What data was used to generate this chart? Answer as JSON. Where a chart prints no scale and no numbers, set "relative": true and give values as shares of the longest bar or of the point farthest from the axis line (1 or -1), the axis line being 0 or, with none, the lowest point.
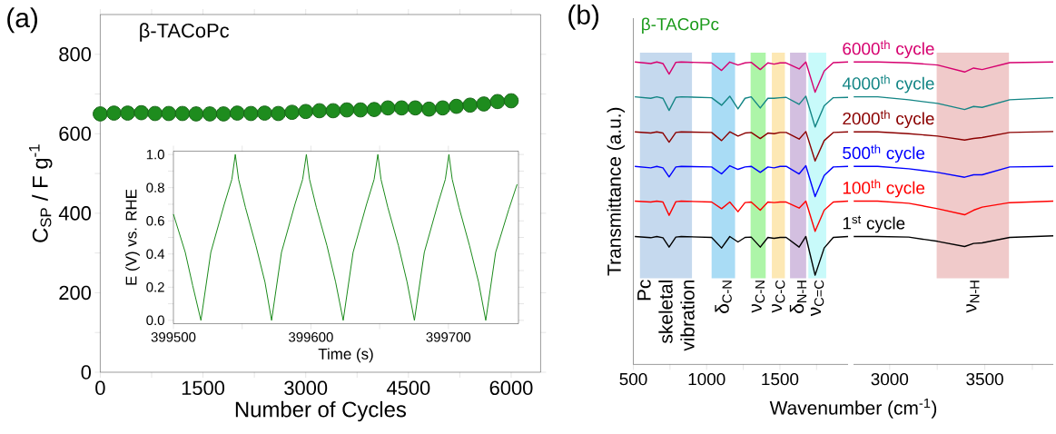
{
  "chart_data": [
    {
      "type": "scatter",
      "title": "β-TACoPc",
      "xlabel": "Number of Cycles",
      "ylabel": "C$_{SP}$ / F g$^{-1}$",
      "annotations": [
        "(a)"
      ],
      "marker": "circle",
      "color": "#1e8c1e",
      "x": [
        0,
        200,
        400,
        600,
        800,
        1000,
        1200,
        1400,
        1600,
        1800,
        2000,
        2200,
        2400,
        2600,
        2800,
        3000,
        3200,
        3400,
        3600,
        3800,
        4000,
        4200,
        4400,
        4600,
        4800,
        5000,
        5200,
        5400,
        5600,
        5800,
        6000
      ],
      "values": [
        650,
        652,
        652,
        653,
        651,
        651,
        651,
        650,
        650,
        650,
        652,
        651,
        652,
        651,
        654,
        656,
        658,
        658,
        660,
        660,
        661,
        665,
        665,
        665,
        662,
        665,
        669,
        672,
        675,
        681,
        683
      ],
      "xlim": [
        0,
        6430
      ],
      "ylim": [
        0,
        900
      ],
      "xticks": [
        0,
        {
          "value": 750,
          "label": null
        },
        1500,
        {
          "value": 2250,
          "label": null
        },
        3000,
        {
          "value": 3750,
          "label": null
        },
        4500,
        {
          "value": 5250,
          "label": null
        },
        6000
      ],
      "yticks": [
        0,
        {
          "value": 100,
          "label": null
        },
        200,
        {
          "value": 300,
          "label": null
        },
        400,
        {
          "value": 500,
          "label": null
        },
        600,
        {
          "value": 700,
          "label": null
        },
        800
      ]
    },
    {
      "type": "line",
      "xlabel": "Time (s)",
      "ylabel": "E (V) vs. RHE",
      "color": "#1a8a1a",
      "marker": "none",
      "line_style": "solid",
      "x": [
        399500,
        399508.6,
        399514,
        399520,
        399527.2,
        399537,
        399542.5,
        399545,
        399547.4,
        399552.4,
        399560,
        399566.6,
        399571.4,
        399578.6,
        399588.4,
        399594,
        399596.7,
        399599,
        399604,
        399611.7,
        399618,
        399623.5,
        399630.7,
        399640.5,
        399646,
        399648.7,
        399651,
        399656,
        399663.7,
        399670,
        399675.3,
        399682.5,
        399692.3,
        399697.8,
        399700.4,
        399702.8,
        399707.8,
        399715.4,
        399722,
        399727.2,
        399734.4,
        399744,
        399750
      ],
      "values": [
        0.64,
        0.41,
        0.21,
        0,
        0.41,
        0.7,
        0.85,
        1.0,
        0.85,
        0.68,
        0.45,
        0.23,
        0,
        0.41,
        0.7,
        0.85,
        1.0,
        0.85,
        0.68,
        0.45,
        0.23,
        0,
        0.41,
        0.7,
        0.85,
        1.0,
        0.85,
        0.68,
        0.45,
        0.23,
        0,
        0.41,
        0.7,
        0.85,
        1.0,
        0.85,
        0.68,
        0.45,
        0.23,
        0,
        0.41,
        0.67,
        0.82
      ],
      "xlim": [
        399500,
        399751
      ],
      "ylim": [
        -0.02,
        1.02
      ],
      "xticks": [
        399500,
        {
          "value": 399550,
          "label": null
        },
        399600,
        {
          "value": 399650,
          "label": null
        },
        399700
      ],
      "yticks": [
        {
          "value": 0,
          "label": "0.0"
        },
        {
          "value": 0.1,
          "label": null
        },
        {
          "value": 0.2,
          "label": "0.2"
        },
        {
          "value": 0.3,
          "label": null
        },
        {
          "value": 0.4,
          "label": "0.4"
        },
        {
          "value": 0.5,
          "label": null
        },
        {
          "value": 0.6,
          "label": "0.6"
        },
        {
          "value": 0.7,
          "label": null
        },
        {
          "value": 0.8,
          "label": "0.8"
        },
        {
          "value": 0.9,
          "label": null
        },
        {
          "value": 1.0,
          "label": "1.0"
        }
      ]
    },
    {
      "type": "line",
      "title": "β-TACoPc",
      "ylabel": "Transmittance (a.u.)",
      "annotations": [
        "(b)"
      ],
      "relative": true,
      "marker": "none",
      "x": [
        510,
        619,
        660,
        702,
        744,
        790,
        827,
        1034,
        1102,
        1158,
        1214,
        1262,
        1304,
        1366,
        1418,
        1460,
        1501,
        1543,
        1631,
        1677,
        1740,
        1802,
        1864,
        1965
      ],
      "series": [
        {
          "color": "#000000",
          "values": [
            0.423,
            0.419,
            0.423,
            0.419,
            0.388,
            0.421,
            0.423,
            0.42,
            0.385,
            0.423,
            0.405,
            0.42,
            0.421,
            0.388,
            0.42,
            0.417,
            0.42,
            0.42,
            0.388,
            0.423,
            0.295,
            0.385,
            0.42,
            0.423
          ]
        },
        {
          "color": "#ff0000",
          "values": [
            0.54,
            0.537,
            0.54,
            0.537,
            0.493,
            0.538,
            0.54,
            0.537,
            0.515,
            0.537,
            0.505,
            0.535,
            0.537,
            0.51,
            0.537,
            0.535,
            0.537,
            0.537,
            0.517,
            0.54,
            0.44,
            0.51,
            0.537,
            0.54
          ]
        },
        {
          "color": "#0000ff",
          "values": [
            0.655,
            0.65,
            0.655,
            0.65,
            0.62,
            0.653,
            0.655,
            0.653,
            0.63,
            0.657,
            0.645,
            0.653,
            0.655,
            0.635,
            0.653,
            0.65,
            0.655,
            0.655,
            0.63,
            0.657,
            0.555,
            0.625,
            0.653,
            0.655
          ]
        },
        {
          "color": "#8b0000",
          "values": [
            0.769,
            0.765,
            0.769,
            0.765,
            0.735,
            0.767,
            0.769,
            0.767,
            0.74,
            0.769,
            0.755,
            0.765,
            0.767,
            0.747,
            0.765,
            0.763,
            0.767,
            0.767,
            0.745,
            0.77,
            0.673,
            0.74,
            0.767,
            0.769
          ]
        },
        {
          "color": "#138585",
          "values": [
            0.885,
            0.88,
            0.885,
            0.88,
            0.84,
            0.883,
            0.885,
            0.882,
            0.857,
            0.887,
            0.845,
            0.88,
            0.885,
            0.848,
            0.88,
            0.88,
            0.882,
            0.883,
            0.86,
            0.887,
            0.785,
            0.855,
            0.882,
            0.883
          ]
        },
        {
          "color": "#d6006f",
          "values": [
            1.0,
            0.995,
            1.0,
            0.995,
            0.96,
            0.999,
            1.0,
            0.997,
            0.972,
            1.0,
            0.99,
            0.997,
            0.999,
            0.975,
            0.997,
            0.993,
            0.997,
            0.997,
            0.977,
            1.0,
            0.9,
            0.97,
            0.998,
            1.0
          ]
        }
      ],
      "bands": [
        {
          "axis": "x",
          "from": 545,
          "to": 900,
          "label": "Pc skeletal vibration",
          "color": "#c5d9ee"
        },
        {
          "axis": "x",
          "from": 1034,
          "to": 1194,
          "label": "δ$_{C-N}$",
          "color": "#a9dcf5"
        },
        {
          "axis": "x",
          "from": 1300,
          "to": 1403,
          "label": "ν$_{C-N}$",
          "color": "#adf5a8"
        },
        {
          "axis": "x",
          "from": 1445,
          "to": 1534,
          "label": "ν$_{C-C}$",
          "color": "#fde8b4"
        },
        {
          "axis": "x",
          "from": 1569,
          "to": 1679,
          "label": "δ$_{N-H}$",
          "color": "#d3bfe0"
        },
        {
          "axis": "x",
          "from": 1694,
          "to": 1816,
          "label": "ν$_{C=C}$",
          "color": "#c8fafa"
        }
      ],
      "xlim": [
        500,
        1965
      ],
      "xticks": [
        500,
        {
          "value": 750,
          "label": null
        },
        1000,
        {
          "value": 1250,
          "label": null
        },
        1500,
        {
          "value": 1750,
          "label": null
        }
      ]
    },
    {
      "type": "line",
      "xlabel": "Wavenumber (cm$^{-1}$)",
      "relative": true,
      "marker": "none",
      "x": [
        2811,
        2937,
        3100,
        3252,
        3394,
        3441,
        3486,
        3631,
        3860
      ],
      "series": [
        {
          "name": "1$^{st}$ cycle",
          "color": "#000000",
          "values": [
            0.423,
            0.423,
            0.421,
            0.407,
            0.39,
            0.4,
            0.402,
            0.42,
            0.425
          ]
        },
        {
          "name": "100$^{th}$ cycle",
          "color": "#ff0000",
          "values": [
            0.54,
            0.54,
            0.533,
            0.515,
            0.495,
            0.51,
            0.52,
            0.535,
            0.54
          ]
        },
        {
          "name": "500$^{th}$ cycle",
          "color": "#0000ff",
          "values": [
            0.655,
            0.655,
            0.647,
            0.635,
            0.619,
            0.627,
            0.627,
            0.653,
            0.655
          ]
        },
        {
          "name": "2000$^{th}$ cycle",
          "color": "#8b0000",
          "values": [
            0.769,
            0.769,
            0.763,
            0.755,
            0.742,
            0.747,
            0.75,
            0.767,
            0.77
          ]
        },
        {
          "name": "4000$^{th}$ cycle",
          "color": "#138585",
          "values": [
            0.885,
            0.885,
            0.875,
            0.863,
            0.843,
            0.853,
            0.85,
            0.875,
            0.882
          ]
        },
        {
          "name": "6000$^{th}$ cycle",
          "color": "#d6006f",
          "values": [
            1.0,
            1.0,
            0.997,
            0.99,
            0.967,
            0.98,
            0.975,
            0.998,
            1.0
          ]
        }
      ],
      "bands": [
        {
          "axis": "x",
          "from": 3247,
          "to": 3627,
          "label": "ν$_{N-H}$",
          "color": "#f0caca"
        }
      ],
      "xlim": [
        2810,
        3860
      ],
      "xticks": [
        3000,
        {
          "value": 3250,
          "label": null
        },
        3500,
        {
          "value": 3750,
          "label": null
        }
      ]
    }
  ]
}
